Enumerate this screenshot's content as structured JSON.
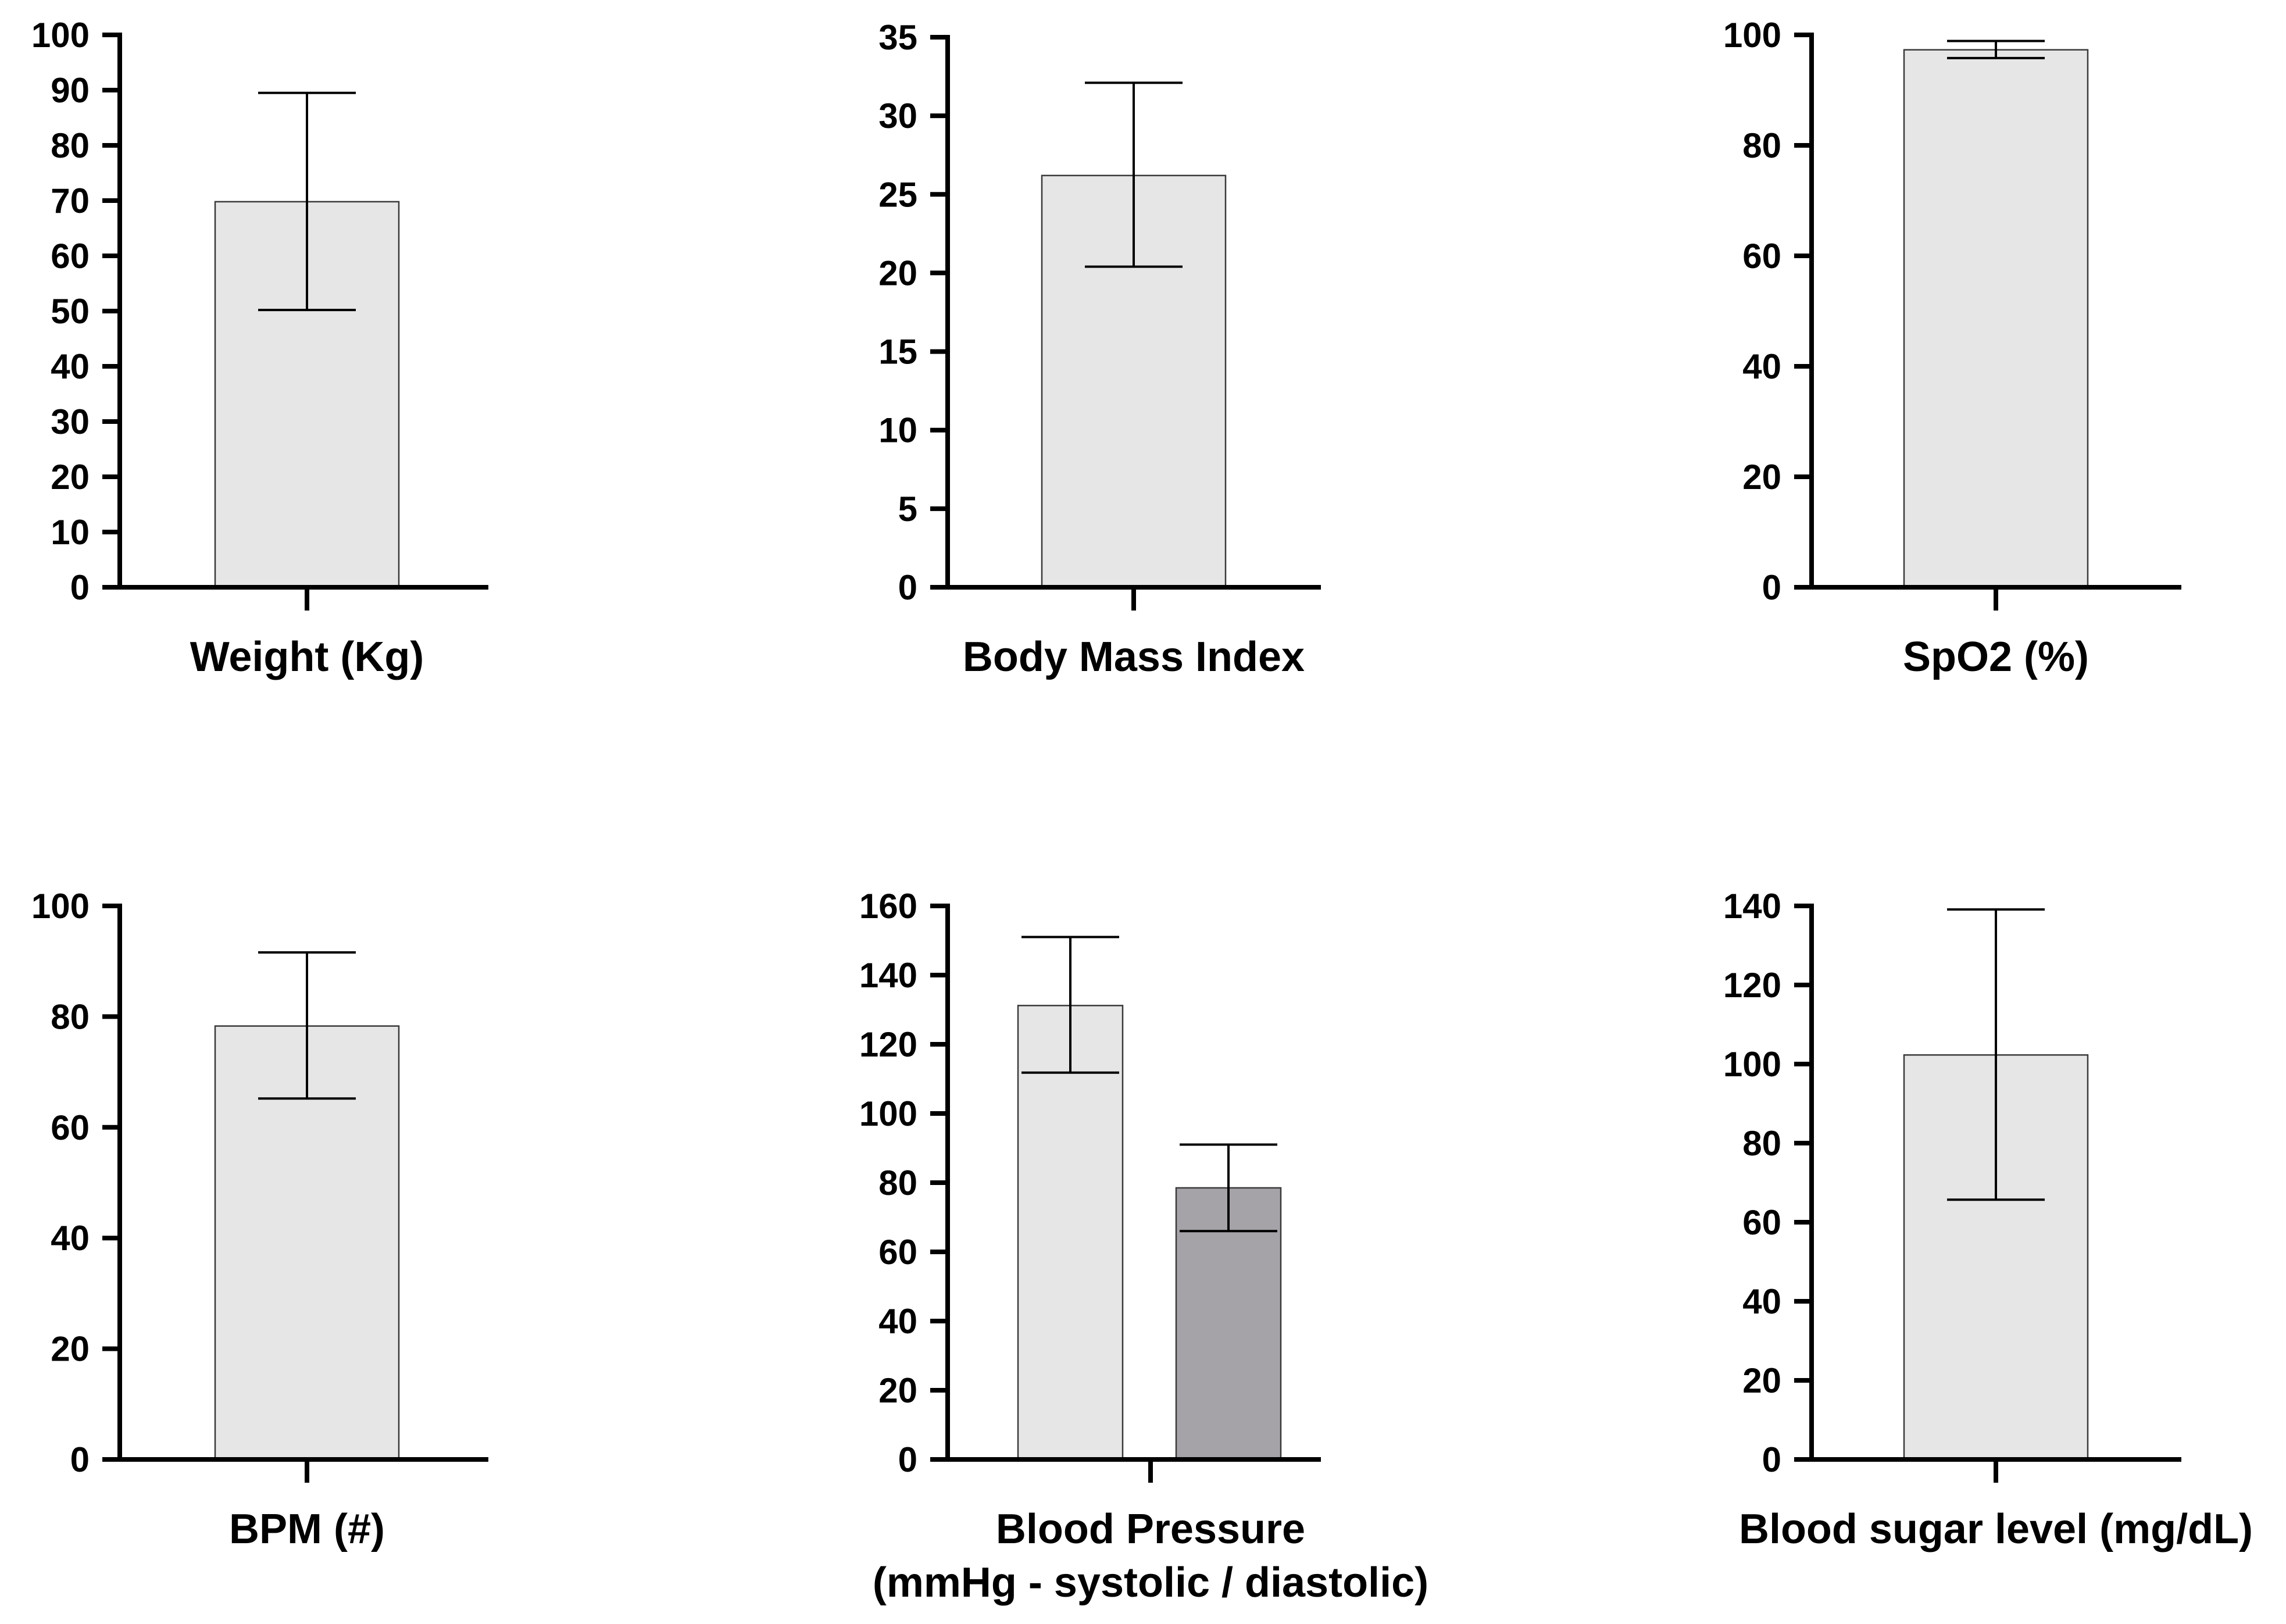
{
  "colors": {
    "bar_light": "#e6e6e6",
    "bar_dark": "#a5a3a8",
    "bar_edge": "#3a3a3a",
    "axis": "#000000"
  },
  "chart_data": [
    {
      "type": "bar",
      "title": "",
      "xlabel": [
        "Weight (Kg)"
      ],
      "ylabel": "",
      "ylim": [
        0,
        100
      ],
      "yticks": [
        0,
        10,
        20,
        30,
        40,
        50,
        60,
        70,
        80,
        90,
        100
      ],
      "bars": [
        {
          "value": 69.8,
          "err_low": 50.2,
          "err_high": 89.5,
          "color": "light"
        }
      ]
    },
    {
      "type": "bar",
      "title": "",
      "xlabel": [
        "Body Mass Index"
      ],
      "ylabel": "",
      "ylim": [
        0,
        35
      ],
      "yticks": [
        0,
        5,
        10,
        15,
        20,
        25,
        30,
        35
      ],
      "bars": [
        {
          "value": 26.2,
          "err_low": 20.4,
          "err_high": 32.1,
          "color": "light"
        }
      ]
    },
    {
      "type": "bar",
      "title": "",
      "xlabel": [
        "SpO2 (%)"
      ],
      "ylabel": "",
      "ylim": [
        0,
        100
      ],
      "yticks": [
        0,
        20,
        40,
        60,
        80,
        100
      ],
      "bars": [
        {
          "value": 97.3,
          "err_low": 95.8,
          "err_high": 98.9,
          "color": "light"
        }
      ]
    },
    {
      "type": "bar",
      "title": "",
      "xlabel": [
        "BPM (#)"
      ],
      "ylabel": "",
      "ylim": [
        0,
        100
      ],
      "yticks": [
        0,
        20,
        40,
        60,
        80,
        100
      ],
      "bars": [
        {
          "value": 78.3,
          "err_low": 65.2,
          "err_high": 91.6,
          "color": "light"
        }
      ]
    },
    {
      "type": "bar",
      "title": "",
      "xlabel": [
        "Blood Pressure",
        "(mmHg - systolic / diastolic)"
      ],
      "ylabel": "",
      "ylim": [
        0,
        160
      ],
      "yticks": [
        0,
        20,
        40,
        60,
        80,
        100,
        120,
        140,
        160
      ],
      "bars": [
        {
          "name": "systolic",
          "value": 131.2,
          "err_low": 111.8,
          "err_high": 151.0,
          "color": "light"
        },
        {
          "name": "diastolic",
          "value": 78.5,
          "err_low": 66.0,
          "err_high": 91.0,
          "color": "dark"
        }
      ]
    },
    {
      "type": "bar",
      "title": "",
      "xlabel": [
        "Blood sugar level (mg/dL)"
      ],
      "ylabel": "",
      "ylim": [
        0,
        140
      ],
      "yticks": [
        0,
        20,
        40,
        60,
        80,
        100,
        120,
        140
      ],
      "bars": [
        {
          "value": 102.3,
          "err_low": 65.7,
          "err_high": 139.1,
          "color": "light"
        }
      ]
    }
  ]
}
